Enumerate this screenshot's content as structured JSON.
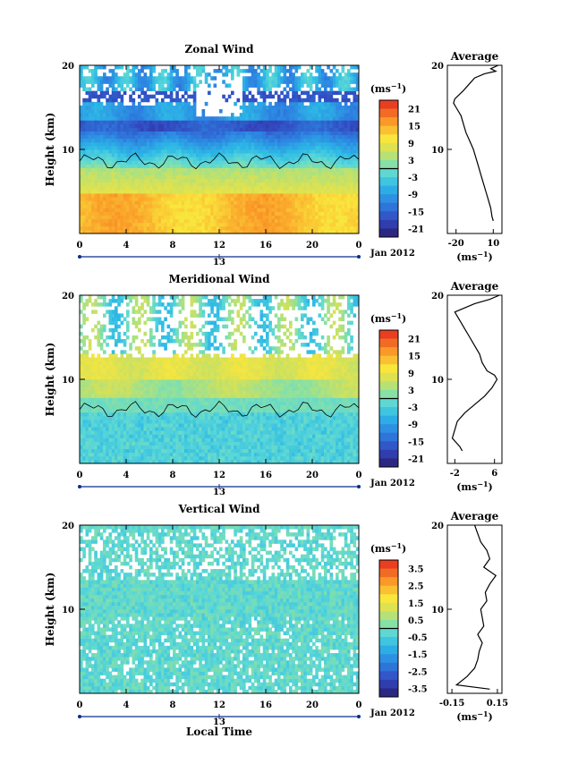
{
  "chart_data": [
    {
      "type": "heatmap",
      "title": "Zonal Wind",
      "ylabel": "Height (km)",
      "x_ticks": [
        "0",
        "4",
        "8",
        "12",
        "16",
        "20",
        "0"
      ],
      "y_ticks": [
        "20",
        "10"
      ],
      "xlim": [
        0,
        24
      ],
      "ylim": [
        0,
        20
      ],
      "date_marker": "13",
      "date_label": "Jan 2012",
      "colorbar": {
        "unit_label": "(ms",
        "unit_sup": "−1",
        "unit_close": ")",
        "ticks": [
          "21",
          "15",
          "9",
          "3",
          "-3",
          "-9",
          "-15",
          "-21"
        ],
        "range": [
          -24,
          24
        ]
      },
      "profile": {
        "title": "Average",
        "x_ticks": [
          "-20",
          "10"
        ],
        "xlim": [
          -27,
          17
        ],
        "unit_label": "(ms",
        "unit_sup": "−1",
        "unit_close": ")",
        "y_ticks": [
          "20",
          "10"
        ],
        "heights": [
          1.5,
          2,
          3,
          4,
          5,
          6,
          7,
          8,
          9,
          10,
          11,
          12,
          13,
          14,
          15,
          15.5,
          16,
          17,
          18,
          18.5,
          19,
          19.3,
          19.6,
          20
        ],
        "values": [
          10,
          9,
          8,
          6,
          4,
          2,
          0,
          -2,
          -4,
          -6,
          -9,
          -12,
          -14,
          -16,
          -20,
          -22,
          -21,
          -14,
          -8,
          -5,
          3,
          12,
          8,
          14
        ]
      }
    },
    {
      "type": "heatmap",
      "title": "Meridional Wind",
      "ylabel": "Height (km)",
      "x_ticks": [
        "0",
        "4",
        "8",
        "12",
        "16",
        "20",
        "0"
      ],
      "y_ticks": [
        "20",
        "10"
      ],
      "xlim": [
        0,
        24
      ],
      "ylim": [
        0,
        20
      ],
      "date_marker": "13",
      "date_label": "Jan 2012",
      "colorbar": {
        "unit_label": "(ms",
        "unit_sup": "−1",
        "unit_close": ")",
        "ticks": [
          "21",
          "15",
          "9",
          "3",
          "-3",
          "-9",
          "-15",
          "-21"
        ],
        "range": [
          -24,
          24
        ]
      },
      "profile": {
        "title": "Average",
        "x_ticks": [
          "-2",
          "6"
        ],
        "xlim": [
          -3.5,
          7.5
        ],
        "unit_label": "(ms",
        "unit_sup": "−1",
        "unit_close": ")",
        "y_ticks": [
          "20",
          "10"
        ],
        "heights": [
          1.5,
          2,
          3,
          4,
          5,
          6,
          7,
          8,
          9,
          10,
          10.5,
          11,
          12,
          13,
          14,
          15,
          16,
          17,
          18,
          19,
          19.5,
          20
        ],
        "values": [
          -0.5,
          -1,
          -2.5,
          -2,
          -1.5,
          0,
          2,
          4,
          5.5,
          6.5,
          6,
          4.5,
          3.5,
          3,
          2,
          1,
          0,
          -1,
          -2,
          2,
          5,
          7
        ]
      }
    },
    {
      "type": "heatmap",
      "title": "Vertical Wind",
      "ylabel": "Height (km)",
      "xlabel": "Local Time",
      "x_ticks": [
        "0",
        "4",
        "8",
        "12",
        "16",
        "20",
        "0"
      ],
      "y_ticks": [
        "20",
        "10"
      ],
      "xlim": [
        0,
        24
      ],
      "ylim": [
        0,
        20
      ],
      "date_marker": "13",
      "date_label": "Jan 2012",
      "colorbar": {
        "unit_label": "(ms",
        "unit_sup": "−1",
        "unit_close": ")",
        "ticks": [
          "3.5",
          "2.5",
          "1.5",
          "0.5",
          "-0.5",
          "-1.5",
          "-2.5",
          "-3.5"
        ],
        "range": [
          -4,
          4
        ]
      },
      "profile": {
        "title": "Average",
        "x_ticks": [
          "-0.15",
          "0.15"
        ],
        "xlim": [
          -0.18,
          0.18
        ],
        "unit_label": "(ms",
        "unit_sup": "−1",
        "unit_close": ")",
        "y_ticks": [
          "20",
          "10"
        ],
        "heights": [
          0.5,
          1,
          2,
          3,
          4,
          5,
          6,
          7,
          8,
          9,
          10,
          11,
          12,
          13,
          14,
          15,
          16,
          17,
          18,
          19,
          20
        ],
        "values": [
          0.1,
          -0.12,
          -0.05,
          0.0,
          0.02,
          0.03,
          0.05,
          0.02,
          0.06,
          0.05,
          0.04,
          0.08,
          0.07,
          0.1,
          0.14,
          0.06,
          0.1,
          0.08,
          0.04,
          0.02,
          0.0
        ]
      }
    }
  ]
}
